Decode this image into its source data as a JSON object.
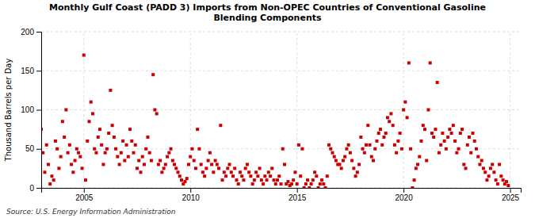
{
  "chart_data": {
    "type": "scatter",
    "title": "Monthly Gulf Coast (PADD 3) Imports from Non-OPEC Countries of Conventional Gasoline\nBlending Components",
    "y_label": "Thousand Barrels per Day",
    "annotations": [
      "Source: U.S. Energy Information Administration"
    ],
    "color": "#cc0000",
    "marker": "square",
    "grid": true,
    "xlim": [
      2003.0,
      2025.5
    ],
    "xticks": [
      2005,
      2010,
      2015,
      2020,
      2025
    ],
    "ylim": [
      0,
      200
    ],
    "yticks": [
      0,
      50,
      100,
      150,
      200
    ],
    "x": [
      2003.0,
      2003.083,
      2003.167,
      2003.25,
      2003.333,
      2003.417,
      2003.5,
      2003.583,
      2003.667,
      2003.75,
      2003.833,
      2003.917,
      2004.0,
      2004.083,
      2004.167,
      2004.25,
      2004.333,
      2004.417,
      2004.5,
      2004.583,
      2004.667,
      2004.75,
      2004.833,
      2004.917,
      2005.0,
      2005.083,
      2005.167,
      2005.25,
      2005.333,
      2005.417,
      2005.5,
      2005.583,
      2005.667,
      2005.75,
      2005.833,
      2005.917,
      2006.0,
      2006.083,
      2006.167,
      2006.25,
      2006.333,
      2006.417,
      2006.5,
      2006.583,
      2006.667,
      2006.75,
      2006.833,
      2006.917,
      2007.0,
      2007.083,
      2007.167,
      2007.25,
      2007.333,
      2007.417,
      2007.5,
      2007.583,
      2007.667,
      2007.75,
      2007.833,
      2007.917,
      2008.0,
      2008.083,
      2008.167,
      2008.25,
      2008.333,
      2008.417,
      2008.5,
      2008.583,
      2008.667,
      2008.75,
      2008.833,
      2008.917,
      2009.0,
      2009.083,
      2009.167,
      2009.25,
      2009.333,
      2009.417,
      2009.5,
      2009.583,
      2009.667,
      2009.75,
      2009.833,
      2009.917,
      2010.0,
      2010.083,
      2010.167,
      2010.25,
      2010.333,
      2010.417,
      2010.5,
      2010.583,
      2010.667,
      2010.75,
      2010.833,
      2010.917,
      2011.0,
      2011.083,
      2011.167,
      2011.25,
      2011.333,
      2011.417,
      2011.5,
      2011.583,
      2011.667,
      2011.75,
      2011.833,
      2011.917,
      2012.0,
      2012.083,
      2012.167,
      2012.25,
      2012.333,
      2012.417,
      2012.5,
      2012.583,
      2012.667,
      2012.75,
      2012.833,
      2012.917,
      2013.0,
      2013.083,
      2013.167,
      2013.25,
      2013.333,
      2013.417,
      2013.5,
      2013.583,
      2013.667,
      2013.75,
      2013.833,
      2013.917,
      2014.0,
      2014.083,
      2014.167,
      2014.25,
      2014.333,
      2014.417,
      2014.5,
      2014.583,
      2014.667,
      2014.75,
      2014.833,
      2014.917,
      2015.0,
      2015.083,
      2015.167,
      2015.25,
      2015.333,
      2015.417,
      2015.5,
      2015.583,
      2015.667,
      2015.75,
      2015.833,
      2015.917,
      2016.0,
      2016.083,
      2016.167,
      2016.25,
      2016.333,
      2016.417,
      2016.5,
      2016.583,
      2016.667,
      2016.75,
      2016.833,
      2016.917,
      2017.0,
      2017.083,
      2017.167,
      2017.25,
      2017.333,
      2017.417,
      2017.5,
      2017.583,
      2017.667,
      2017.75,
      2017.833,
      2017.917,
      2018.0,
      2018.083,
      2018.167,
      2018.25,
      2018.333,
      2018.417,
      2018.5,
      2018.583,
      2018.667,
      2018.75,
      2018.833,
      2018.917,
      2019.0,
      2019.083,
      2019.167,
      2019.25,
      2019.333,
      2019.417,
      2019.5,
      2019.583,
      2019.667,
      2019.75,
      2019.833,
      2019.917,
      2020.0,
      2020.083,
      2020.167,
      2020.25,
      2020.333,
      2020.417,
      2020.5,
      2020.583,
      2020.667,
      2020.75,
      2020.833,
      2020.917,
      2021.0,
      2021.083,
      2021.167,
      2021.25,
      2021.333,
      2021.417,
      2021.5,
      2021.583,
      2021.667,
      2021.75,
      2021.833,
      2021.917,
      2022.0,
      2022.083,
      2022.167,
      2022.25,
      2022.333,
      2022.417,
      2022.5,
      2022.583,
      2022.667,
      2022.75,
      2022.833,
      2022.917,
      2023.0,
      2023.083,
      2023.167,
      2023.25,
      2023.333,
      2023.417,
      2023.5,
      2023.583,
      2023.667,
      2023.75,
      2023.833,
      2023.917,
      2024.0,
      2024.083,
      2024.167,
      2024.25,
      2024.333,
      2024.417,
      2024.5,
      2024.583,
      2024.667,
      2024.75,
      2024.833,
      2024.917
    ],
    "values": [
      75,
      45,
      20,
      55,
      30,
      5,
      15,
      10,
      60,
      50,
      25,
      40,
      85,
      65,
      100,
      45,
      55,
      30,
      20,
      35,
      50,
      45,
      40,
      25,
      170,
      10,
      60,
      85,
      110,
      95,
      50,
      45,
      65,
      75,
      55,
      30,
      45,
      50,
      70,
      125,
      80,
      65,
      50,
      40,
      30,
      45,
      60,
      35,
      55,
      40,
      75,
      60,
      45,
      55,
      25,
      35,
      20,
      40,
      30,
      50,
      65,
      45,
      35,
      145,
      100,
      95,
      30,
      35,
      20,
      25,
      30,
      40,
      45,
      50,
      35,
      30,
      25,
      20,
      15,
      10,
      5,
      8,
      12,
      30,
      40,
      50,
      35,
      25,
      75,
      50,
      30,
      20,
      15,
      25,
      35,
      45,
      30,
      20,
      35,
      30,
      25,
      80,
      10,
      20,
      15,
      25,
      30,
      20,
      15,
      25,
      10,
      5,
      20,
      15,
      10,
      25,
      30,
      20,
      15,
      5,
      10,
      20,
      15,
      25,
      10,
      5,
      15,
      10,
      20,
      15,
      25,
      10,
      5,
      10,
      15,
      5,
      50,
      30,
      5,
      8,
      3,
      5,
      10,
      20,
      5,
      55,
      15,
      50,
      0,
      5,
      10,
      0,
      5,
      10,
      20,
      15,
      0,
      5,
      10,
      5,
      0,
      15,
      55,
      50,
      45,
      40,
      35,
      30,
      30,
      25,
      35,
      40,
      50,
      55,
      45,
      35,
      25,
      15,
      20,
      30,
      65,
      50,
      45,
      55,
      80,
      55,
      40,
      35,
      50,
      60,
      70,
      75,
      55,
      65,
      70,
      90,
      85,
      95,
      80,
      55,
      45,
      60,
      70,
      50,
      100,
      110,
      90,
      160,
      50,
      0,
      10,
      25,
      30,
      40,
      60,
      80,
      75,
      35,
      100,
      160,
      70,
      65,
      75,
      135,
      45,
      55,
      70,
      60,
      50,
      65,
      75,
      70,
      80,
      60,
      45,
      50,
      70,
      75,
      30,
      25,
      55,
      65,
      45,
      70,
      60,
      50,
      40,
      30,
      35,
      25,
      20,
      10,
      15,
      25,
      30,
      20,
      10,
      5,
      30,
      15,
      10,
      5,
      8,
      3
    ]
  }
}
